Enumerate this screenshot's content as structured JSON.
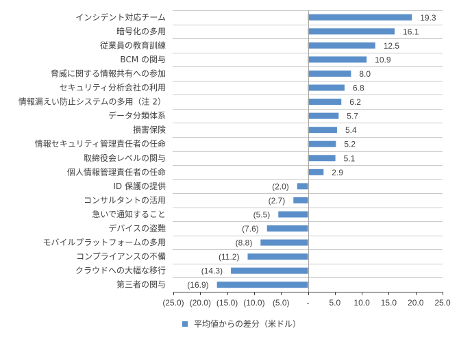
{
  "chart_data": {
    "type": "bar",
    "orientation": "horizontal",
    "title": "",
    "xlabel": "",
    "ylabel": "",
    "xlim": [
      -25,
      25
    ],
    "xticks": [
      -25,
      -20,
      -15,
      -10,
      -5,
      0,
      5,
      10,
      15,
      20,
      25
    ],
    "xtick_labels": [
      "(25.0)",
      "(20.0)",
      "(15.0)",
      "(10.0)",
      "(5.0)",
      "-",
      "5.0",
      "10.0",
      "15.0",
      "20.0",
      "25.0"
    ],
    "grid": "horizontal category separators",
    "legend_position": "bottom",
    "bar_color": "#5b8fc9",
    "categories": [
      "インシデント対応チーム",
      "暗号化の多用",
      "従業員の教育訓練",
      "BCM の関与",
      "脅威に関する情報共有への参加",
      "セキュリティ分析会社の利用",
      "情報漏えい防止システムの多用（注 2）",
      "データ分類体系",
      "損害保険",
      "情報セキュリティ管理責任者の任命",
      "取締役会レベルの関与",
      "個人情報管理責任者の任命",
      "ID 保護の提供",
      "コンサルタントの活用",
      "急いで通知すること",
      "デバイスの盗難",
      "モバイルプラットフォームの多用",
      "コンプライアンスの不備",
      "クラウドへの大幅な移行",
      "第三者の関与"
    ],
    "series": [
      {
        "name": "平均値からの差分（米ドル）",
        "values": [
          19.3,
          16.1,
          12.5,
          10.9,
          8.0,
          6.8,
          6.2,
          5.7,
          5.4,
          5.2,
          5.1,
          2.9,
          -2.0,
          -2.7,
          -5.5,
          -7.6,
          -8.8,
          -11.2,
          -14.3,
          -16.9
        ],
        "value_labels": [
          "19.3",
          "16.1",
          "12.5",
          "10.9",
          "8.0",
          "6.8",
          "6.2",
          "5.7",
          "5.4",
          "5.2",
          "5.1",
          "2.9",
          "(2.0)",
          "(2.7)",
          "(5.5)",
          "(7.6)",
          "(8.8)",
          "(11.2)",
          "(14.3)",
          "(16.9)"
        ]
      }
    ]
  },
  "legend": {
    "label": "平均値からの差分（米ドル）"
  }
}
